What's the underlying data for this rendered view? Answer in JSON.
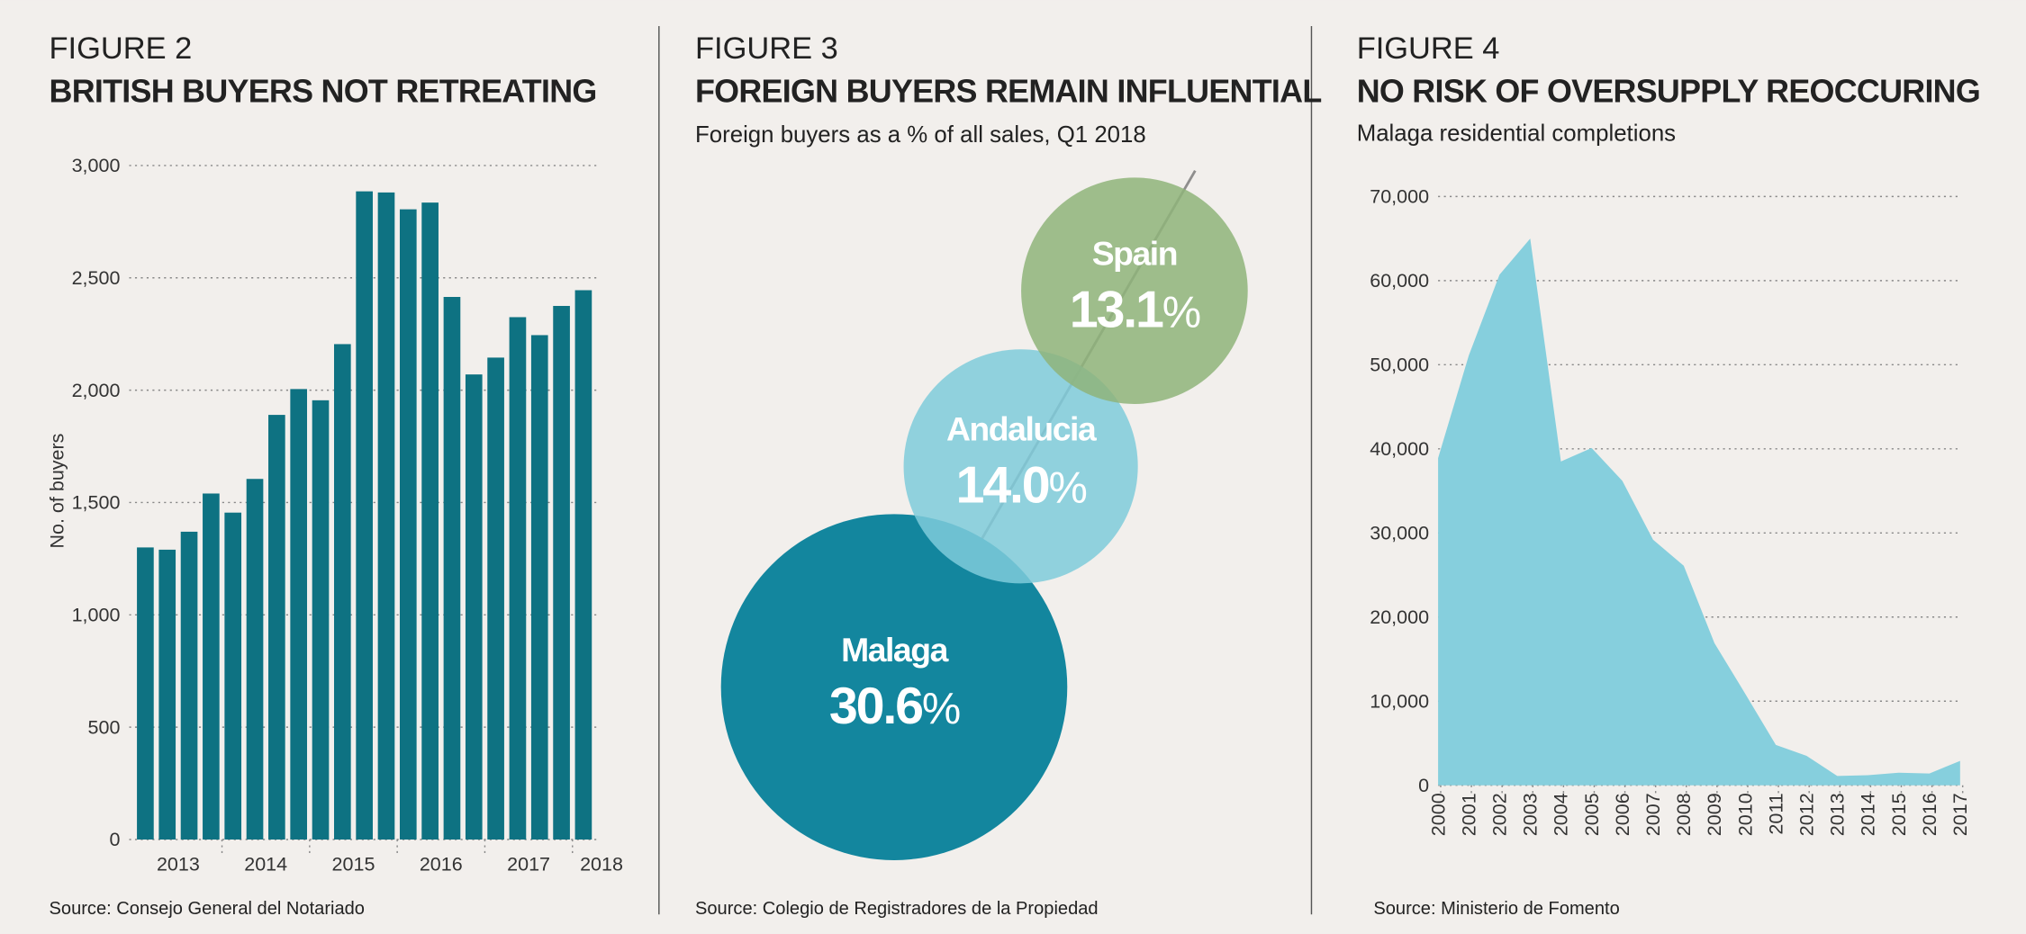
{
  "chart_data": [
    {
      "type": "bar",
      "figure": "FIGURE 2",
      "title": "BRITISH BUYERS NOT RETREATING",
      "ylabel": "No. of buyers",
      "source": "Source: Consejo General del Notariado",
      "categories": [
        "2013",
        null,
        null,
        null,
        "2014",
        null,
        null,
        null,
        "2015",
        null,
        null,
        null,
        "2016",
        null,
        null,
        null,
        "2017",
        null,
        null,
        null,
        "2018"
      ],
      "values": [
        1300,
        1290,
        1370,
        1540,
        1455,
        1605,
        1890,
        2005,
        1955,
        2205,
        2885,
        2880,
        2805,
        2835,
        2415,
        2070,
        2145,
        2325,
        2245,
        2375,
        2445
      ],
      "color": "#0e7282",
      "ylim": [
        0,
        3000
      ],
      "yticks": [
        0,
        500,
        {
          "value": 1000,
          "label": "1,000"
        },
        {
          "value": 1500,
          "label": "1,500"
        },
        {
          "value": 2000,
          "label": "2,000"
        },
        {
          "value": 2500,
          "label": "2,500"
        },
        {
          "value": 3000,
          "label": "3,000"
        }
      ],
      "grid": true
    },
    {
      "type": "bubble",
      "figure": "FIGURE 3",
      "title": "FOREIGN BUYERS REMAIN INFLUENTIAL",
      "subtitle": "Foreign buyers as a % of all sales, Q1 2018",
      "source": "Source: Colegio de Registradores de la Propiedad",
      "categories": [
        "Malaga",
        "Andalucia",
        "Spain"
      ],
      "values": [
        30.6,
        14.0,
        13.1
      ],
      "value_labels": [
        "30.6%",
        "14.0%",
        "13.1%"
      ],
      "colors": [
        "#13869e",
        "#7fcbdb",
        "#8fb47a"
      ]
    },
    {
      "type": "area",
      "figure": "FIGURE 4",
      "title": "NO RISK OF OVERSUPPLY REOCCURING",
      "subtitle": "Malaga residential completions",
      "source": "Source: Ministerio de Fomento",
      "categories": [
        "2000",
        "2001",
        "2002",
        "2003",
        "2004",
        "2005",
        "2006",
        "2007",
        "2008",
        "2009",
        "2010",
        "2011",
        "2012",
        "2013",
        "2014",
        "2015",
        "2016",
        "2017"
      ],
      "values": [
        38900,
        51100,
        60700,
        65000,
        38500,
        40100,
        36200,
        29200,
        26100,
        16900,
        10900,
        4800,
        3500,
        1100,
        1200,
        1500,
        1400,
        2900
      ],
      "color": "#86cfdd",
      "ylim": [
        0,
        70000
      ],
      "yticks": [
        0,
        {
          "value": 10000,
          "label": "10,000"
        },
        {
          "value": 20000,
          "label": "20,000"
        },
        {
          "value": 30000,
          "label": "30,000"
        },
        {
          "value": 40000,
          "label": "40,000"
        },
        {
          "value": 50000,
          "label": "50,000"
        },
        {
          "value": 60000,
          "label": "60,000"
        },
        {
          "value": 70000,
          "label": "70,000"
        }
      ],
      "grid": true
    }
  ]
}
